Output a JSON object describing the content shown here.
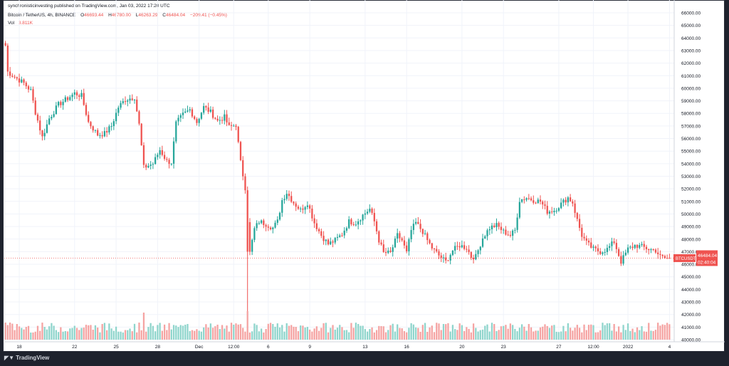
{
  "header": {
    "published": "synchronisticinvesting published on TradingView.com, Jan 03, 2022 17:20 UTC"
  },
  "symbol": {
    "title": "Bitcoin / TetherUS, 4h, BINANCE",
    "open_label": "O",
    "open": "46693.44",
    "high_label": "H",
    "high": "46780.00",
    "low_label": "L",
    "low": "46263.29",
    "close_label": "C",
    "close": "46484.04",
    "change": "−209.41 (−0.45%)"
  },
  "volume": {
    "label": "Vol",
    "value": "3.811K"
  },
  "price_tag": {
    "symbol": "BTCUSDT",
    "price": "46484.04",
    "countdown": "02:40:04"
  },
  "footer": {
    "logo_text": "TradingView"
  },
  "colors": {
    "up": "#26a69a",
    "down": "#ef5350",
    "vol_up": "#8fd5cc",
    "vol_down": "#f5a3a2",
    "grid": "#f0f3fa",
    "price_line": "#ef5350",
    "background": "#ffffff",
    "frame": "#1e222d"
  },
  "chart_data": {
    "type": "candlestick",
    "interval": "4h",
    "ylim": [
      40000,
      66000
    ],
    "y_ticks": [
      "40000.00",
      "41000.00",
      "42000.00",
      "43000.00",
      "44000.00",
      "45000.00",
      "46000.00",
      "47000.00",
      "48000.00",
      "49000.00",
      "50000.00",
      "51000.00",
      "52000.00",
      "53000.00",
      "54000.00",
      "55000.00",
      "56000.00",
      "57000.00",
      "58000.00",
      "59000.00",
      "60000.00",
      "61000.00",
      "62000.00",
      "63000.00",
      "64000.00",
      "65000.00",
      "66000.00"
    ],
    "x_ticks": [
      {
        "label": "18",
        "index": 6
      },
      {
        "label": "22",
        "index": 30
      },
      {
        "label": "25",
        "index": 48
      },
      {
        "label": "28",
        "index": 66
      },
      {
        "label": "Dec",
        "index": 84
      },
      {
        "label": "12:00",
        "index": 99
      },
      {
        "label": "6",
        "index": 114
      },
      {
        "label": "9",
        "index": 132
      },
      {
        "label": "13",
        "index": 156
      },
      {
        "label": "16",
        "index": 174
      },
      {
        "label": "20",
        "index": 198
      },
      {
        "label": "23",
        "index": 216
      },
      {
        "label": "27",
        "index": 240
      },
      {
        "label": "12:00",
        "index": 255
      },
      {
        "label": "2022",
        "index": 270
      },
      {
        "label": "4",
        "index": 288
      }
    ],
    "last_price": 46484.04,
    "keypoints": [
      [
        0,
        63400
      ],
      [
        1,
        61300
      ],
      [
        4,
        60900
      ],
      [
        8,
        60400
      ],
      [
        11,
        59800
      ],
      [
        13,
        58100
      ],
      [
        16,
        56100
      ],
      [
        19,
        57600
      ],
      [
        23,
        58700
      ],
      [
        27,
        59200
      ],
      [
        30,
        59600
      ],
      [
        33,
        59400
      ],
      [
        36,
        57300
      ],
      [
        40,
        56300
      ],
      [
        43,
        56400
      ],
      [
        46,
        57000
      ],
      [
        49,
        58500
      ],
      [
        52,
        59100
      ],
      [
        56,
        59300
      ],
      [
        58,
        57100
      ],
      [
        60,
        53700
      ],
      [
        64,
        54000
      ],
      [
        67,
        55100
      ],
      [
        70,
        54200
      ],
      [
        72,
        54100
      ],
      [
        74,
        57200
      ],
      [
        77,
        57900
      ],
      [
        80,
        58300
      ],
      [
        83,
        57300
      ],
      [
        86,
        58500
      ],
      [
        89,
        58100
      ],
      [
        92,
        57400
      ],
      [
        95,
        57700
      ],
      [
        97,
        56900
      ],
      [
        100,
        57100
      ],
      [
        102,
        54100
      ],
      [
        104,
        52100
      ],
      [
        106,
        46900
      ],
      [
        108,
        48800
      ],
      [
        110,
        49400
      ],
      [
        113,
        49200
      ],
      [
        116,
        48900
      ],
      [
        118,
        49400
      ],
      [
        120,
        51100
      ],
      [
        122,
        51700
      ],
      [
        125,
        50900
      ],
      [
        128,
        50300
      ],
      [
        131,
        50900
      ],
      [
        134,
        49300
      ],
      [
        137,
        48300
      ],
      [
        140,
        47600
      ],
      [
        143,
        47900
      ],
      [
        146,
        48400
      ],
      [
        149,
        49400
      ],
      [
        152,
        49300
      ],
      [
        155,
        49900
      ],
      [
        158,
        50400
      ],
      [
        160,
        49400
      ],
      [
        162,
        47900
      ],
      [
        164,
        46900
      ],
      [
        167,
        46900
      ],
      [
        170,
        48300
      ],
      [
        172,
        47900
      ],
      [
        174,
        46900
      ],
      [
        176,
        48700
      ],
      [
        178,
        49300
      ],
      [
        181,
        48600
      ],
      [
        183,
        47900
      ],
      [
        185,
        47300
      ],
      [
        188,
        46700
      ],
      [
        191,
        46200
      ],
      [
        194,
        47100
      ],
      [
        197,
        47500
      ],
      [
        200,
        47300
      ],
      [
        202,
        46600
      ],
      [
        204,
        46600
      ],
      [
        207,
        48100
      ],
      [
        210,
        48900
      ],
      [
        213,
        49100
      ],
      [
        216,
        48600
      ],
      [
        219,
        48300
      ],
      [
        221,
        48700
      ],
      [
        223,
        51100
      ],
      [
        226,
        51300
      ],
      [
        229,
        51100
      ],
      [
        232,
        51000
      ],
      [
        235,
        50200
      ],
      [
        238,
        50300
      ],
      [
        241,
        50800
      ],
      [
        244,
        51300
      ],
      [
        246,
        50900
      ],
      [
        248,
        49500
      ],
      [
        250,
        48300
      ],
      [
        252,
        47700
      ],
      [
        255,
        47200
      ],
      [
        258,
        47000
      ],
      [
        261,
        47200
      ],
      [
        264,
        47800
      ],
      [
        267,
        46200
      ],
      [
        270,
        47200
      ],
      [
        273,
        47500
      ],
      [
        276,
        47400
      ],
      [
        279,
        47200
      ],
      [
        282,
        47100
      ],
      [
        284,
        46600
      ],
      [
        286,
        46484
      ]
    ],
    "volume_range": [
      0,
      4000
    ],
    "volume_note": "volume bars shown as histogram at bottom, max spike near Dec 4"
  }
}
